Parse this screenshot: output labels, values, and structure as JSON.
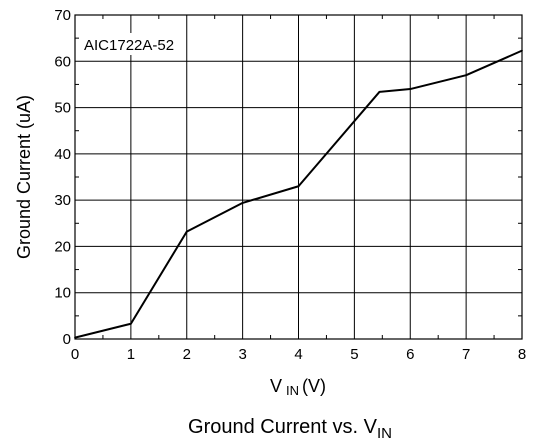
{
  "chart_data": {
    "type": "line",
    "annotation": "AIC1722A-52",
    "xlabel": {
      "main": "V",
      "sub": "IN",
      "unit": "(V)"
    },
    "ylabel": "Ground Current (uA)",
    "caption": {
      "main": "Ground Current vs. V",
      "sub": "IN"
    },
    "xlim": [
      0,
      8
    ],
    "ylim": [
      0,
      70
    ],
    "x_ticks": [
      "0",
      "1",
      "2",
      "3",
      "4",
      "5",
      "6",
      "7",
      "8"
    ],
    "y_ticks": [
      "0",
      "10",
      "20",
      "30",
      "40",
      "50",
      "60",
      "70"
    ],
    "grid": true,
    "series": [
      {
        "x": [
          0,
          1,
          2,
          3,
          4,
          5.45,
          6,
          7,
          8
        ],
        "y": [
          0.3,
          3.3,
          23.2,
          29.4,
          33.0,
          53.4,
          54.0,
          57.0,
          62.3
        ]
      }
    ]
  }
}
